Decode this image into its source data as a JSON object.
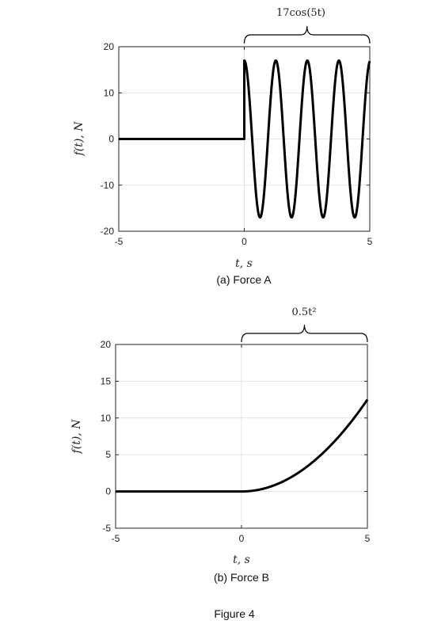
{
  "figure_caption": "Figure 4",
  "chart_data": [
    {
      "type": "line",
      "caption": "(a) Force A",
      "xlabel": "t, s",
      "ylabel": "f(t), N",
      "xlim": [
        -5,
        5
      ],
      "ylim": [
        -20,
        20
      ],
      "xticks": [
        -5,
        0,
        5
      ],
      "yticks": [
        20,
        10,
        0,
        -10,
        -20
      ],
      "xtick_labels": [
        "-5",
        "0",
        "5"
      ],
      "ytick_labels": [
        "20",
        "10",
        "0",
        "-10",
        "-20"
      ],
      "grid": true,
      "line_color": "#000000",
      "series": [
        {
          "pieces": [
            {
              "x_range": [
                -5,
                0
              ],
              "expression": "0"
            },
            {
              "x_range": [
                0,
                5
              ],
              "expression": "17cos(5t)",
              "amplitude": 17,
              "angular_frequency": 5
            }
          ],
          "x": [
            -5,
            0,
            0,
            0.314,
            0.628,
            0.942,
            1.257,
            1.571,
            1.885,
            2.199,
            2.513,
            2.827,
            3.142,
            3.456,
            3.77,
            4.084,
            4.398,
            4.712,
            5
          ],
          "y": [
            0,
            0,
            17,
            0,
            -17,
            0,
            17,
            0,
            -17,
            0,
            17,
            0,
            -17,
            0,
            17,
            0,
            -17,
            0,
            16.9
          ]
        }
      ],
      "annotation": {
        "text": "17cos(5t)",
        "x_range": [
          0,
          5
        ]
      }
    },
    {
      "type": "line",
      "caption": "(b) Force B",
      "xlabel": "t, s",
      "ylabel": "f(t), N",
      "xlim": [
        -5,
        5
      ],
      "ylim": [
        -5,
        20
      ],
      "xticks": [
        -5,
        0,
        5
      ],
      "yticks": [
        20,
        15,
        10,
        5,
        0,
        -5
      ],
      "xtick_labels": [
        "-5",
        "0",
        "5"
      ],
      "ytick_labels": [
        "20",
        "15",
        "10",
        "5",
        "0",
        "-5"
      ],
      "grid": true,
      "line_color": "#000000",
      "series": [
        {
          "pieces": [
            {
              "x_range": [
                -5,
                0
              ],
              "expression": "0"
            },
            {
              "x_range": [
                0,
                5
              ],
              "expression": "0.5t^2",
              "coefficient": 0.5
            }
          ],
          "x": [
            -5,
            0,
            1,
            2,
            3,
            4,
            5
          ],
          "y": [
            0,
            0,
            0.5,
            2,
            4.5,
            8,
            12.5
          ]
        }
      ],
      "annotation": {
        "text": "0.5t²",
        "x_range": [
          0,
          5
        ]
      }
    }
  ]
}
